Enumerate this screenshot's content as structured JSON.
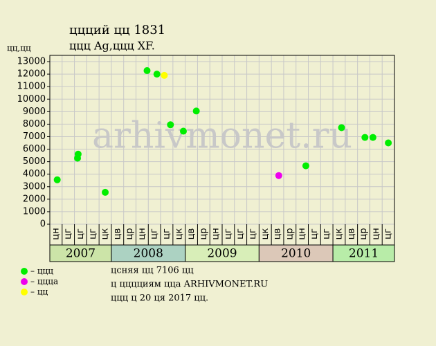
{
  "chart_data": {
    "type": "scatter",
    "title": "ццций цц 1831",
    "subtitle": "ццц Ag,ццц XF.",
    "y_label": "цц,цц",
    "watermark": "arhivmonet.ru",
    "categories": [
      "цн",
      "цг",
      "цг",
      "цг",
      "цк",
      "цв",
      "цр",
      "цн",
      "цг",
      "цг",
      "цк",
      "цв",
      "цр",
      "цн",
      "цг",
      "цг",
      "цг",
      "цк",
      "цв",
      "цр",
      "цн",
      "цг",
      "цг",
      "цк",
      "цв",
      "цр",
      "цн",
      "цг"
    ],
    "year_groups": [
      {
        "label": "2007",
        "span": 5,
        "color": "#cce4a8"
      },
      {
        "label": "2008",
        "span": 6,
        "color": "#acd2c2"
      },
      {
        "label": "2009",
        "span": 6,
        "color": "#d8eeb8"
      },
      {
        "label": "2010",
        "span": 6,
        "color": "#dcc8b8"
      },
      {
        "label": "2011",
        "span": 5,
        "color": "#b8eca8"
      }
    ],
    "xlim": [
      0,
      28
    ],
    "ylim": [
      0,
      13500
    ],
    "yticks": [
      0,
      1000,
      2000,
      3000,
      4000,
      5000,
      6000,
      7000,
      8000,
      9000,
      10000,
      11000,
      12000,
      13000
    ],
    "grid": true,
    "series": [
      {
        "name": "– ццц",
        "color": "#00ee00",
        "x": [
          0.6,
          2.25,
          2.3,
          4.5,
          7.9,
          8.7,
          9.8,
          10.85,
          11.9,
          20.8,
          23.7,
          25.6,
          26.25,
          27.5
        ],
        "values": [
          3550,
          5280,
          5600,
          2550,
          12280,
          12000,
          7950,
          7440,
          9050,
          4670,
          7720,
          6940,
          6940,
          6500
        ]
      },
      {
        "name": "– ццца",
        "color": "#ee00ee",
        "x": [
          18.6
        ],
        "values": [
          3890
        ]
      },
      {
        "name": "– цц",
        "color": "#ffff00",
        "x": [
          9.3
        ],
        "values": [
          11900
        ]
      }
    ],
    "notes": [
      "цсняя цц 7106 цц",
      "ц цццциям цца ARHIVMONET.RU",
      "ццц ц 20 ця 2017 цц."
    ]
  }
}
